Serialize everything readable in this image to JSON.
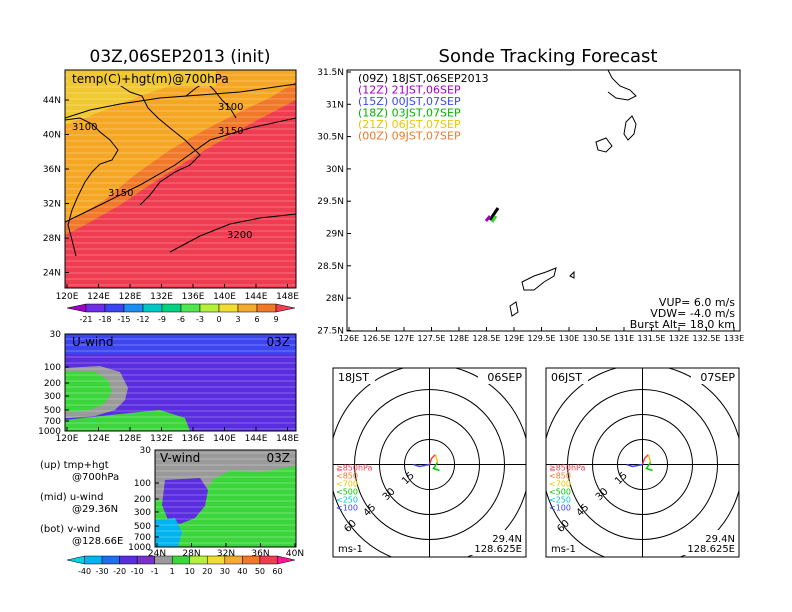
{
  "left_panel_title": "03Z,06SEP2013 (init)",
  "right_panel_title": "Sonde Tracking Forecast",
  "colors": {
    "magenta": "#ff1493",
    "orange": "#f5a623",
    "blue": "#5a2de0",
    "green": "#3cd63c",
    "gray": "#9a9a9a"
  },
  "colorbar_top": {
    "labels": [
      "-21",
      "-18",
      "-15",
      "-12",
      "-9",
      "-6",
      "-3",
      "0",
      "3",
      "6",
      "9"
    ],
    "colors": [
      "#a000c8",
      "#6e2de6",
      "#3c46f0",
      "#1e8cf0",
      "#00c8c8",
      "#00d282",
      "#50e650",
      "#b4f03c",
      "#f0dc32",
      "#f5aa32",
      "#f07828",
      "#f03c50"
    ]
  },
  "colorbar_bottom": {
    "labels": [
      "-40",
      "-30",
      "-20",
      "-10",
      "-1",
      "1",
      "10",
      "20",
      "30",
      "40",
      "50",
      "60"
    ],
    "colors": [
      "#00d2e6",
      "#00b4f0",
      "#1e6ef0",
      "#5a2de0",
      "#7832c8",
      "#9a9a9a",
      "#3cd63c",
      "#b4f03c",
      "#f0dc32",
      "#f5aa32",
      "#f07828",
      "#f03c50",
      "#ff1493"
    ]
  },
  "map_panel": {
    "title": "temp(C)+hgt(m)@700hPa",
    "lat_ticks": [
      "44N",
      "40N",
      "36N",
      "32N",
      "28N",
      "24N"
    ],
    "lon_ticks": [
      "120E",
      "124E",
      "128E",
      "132E",
      "136E",
      "140E",
      "144E",
      "148E"
    ],
    "contour_labels": [
      "3100",
      "3100",
      "3150",
      "3150",
      "3200"
    ]
  },
  "u_panel": {
    "title": "U-wind",
    "time": "03Z",
    "p_ticks": [
      "30",
      "100",
      "200",
      "300",
      "500",
      "700",
      "1000"
    ],
    "lon_ticks": [
      "120E",
      "124E",
      "128E",
      "132E",
      "136E",
      "140E",
      "144E",
      "148E"
    ]
  },
  "v_panel": {
    "title": "V-wind",
    "time": "03Z",
    "p_ticks": [
      "30",
      "100",
      "200",
      "300",
      "500",
      "700",
      "1000"
    ],
    "lat_ticks": [
      "24N",
      "28N",
      "32N",
      "36N",
      "40N"
    ]
  },
  "notes": [
    {
      "head": "(up)  tmp+hgt",
      "sub": "@700hPa"
    },
    {
      "head": "(mid)  u-wind",
      "sub": "@29.36N"
    },
    {
      "head": "(bot)  v-wind",
      "sub": "@128.66E"
    }
  ],
  "track_panel": {
    "lat_ticks": [
      "31.5N",
      "31N",
      "30.5N",
      "30N",
      "29.5N",
      "29N",
      "28.5N",
      "28N",
      "27.5N"
    ],
    "lon_ticks": [
      "126E",
      "126.5E",
      "127E",
      "127.5E",
      "128E",
      "128.5E",
      "129E",
      "129.5E",
      "130E",
      "130.5E",
      "131E",
      "131.5E",
      "132E",
      "132.5E",
      "133E"
    ],
    "legend": [
      {
        "text": "(09Z)  18JST,06SEP2013",
        "color": "#000000"
      },
      {
        "text": "(12Z)  21JST,06SEP",
        "color": "#a000c8"
      },
      {
        "text": "(15Z)  00JST,07SEP",
        "color": "#3c46f0"
      },
      {
        "text": "(18Z)  03JST,07SEP",
        "color": "#00b400"
      },
      {
        "text": "(21Z)  06JST,07SEP",
        "color": "#e6c800"
      },
      {
        "text": "(00Z)  09JST,07SEP",
        "color": "#f07828"
      }
    ],
    "params": [
      "VUP=  6.0  m/s",
      "VDW= -4.0  m/s",
      "Burst Alt=  18.0  km"
    ]
  },
  "hodographs": [
    {
      "time": "18JST",
      "date": "06SEP",
      "lat": "29.4N",
      "lon": "128.625E",
      "unit": "ms-1",
      "rings": [
        "15",
        "30",
        "45",
        "60"
      ],
      "levels": [
        {
          "label": "≧850hPa",
          "color": "#f03c50"
        },
        {
          "label": "<850",
          "color": "#f07828"
        },
        {
          "label": "<700",
          "color": "#e6c800"
        },
        {
          "label": "<500",
          "color": "#00c800"
        },
        {
          "label": "<250",
          "color": "#00c8c8"
        },
        {
          "label": "<100",
          "color": "#3c46f0"
        }
      ]
    },
    {
      "time": "06JST",
      "date": "07SEP",
      "lat": "29.4N",
      "lon": "128.625E",
      "unit": "ms-1",
      "rings": [
        "15",
        "30",
        "45",
        "60"
      ],
      "levels": [
        {
          "label": "≧850hPa",
          "color": "#f03c50"
        },
        {
          "label": "<850",
          "color": "#f07828"
        },
        {
          "label": "<700",
          "color": "#e6c800"
        },
        {
          "label": "<500",
          "color": "#00c800"
        },
        {
          "label": "<250",
          "color": "#00c8c8"
        },
        {
          "label": "<100",
          "color": "#3c46f0"
        }
      ]
    }
  ]
}
